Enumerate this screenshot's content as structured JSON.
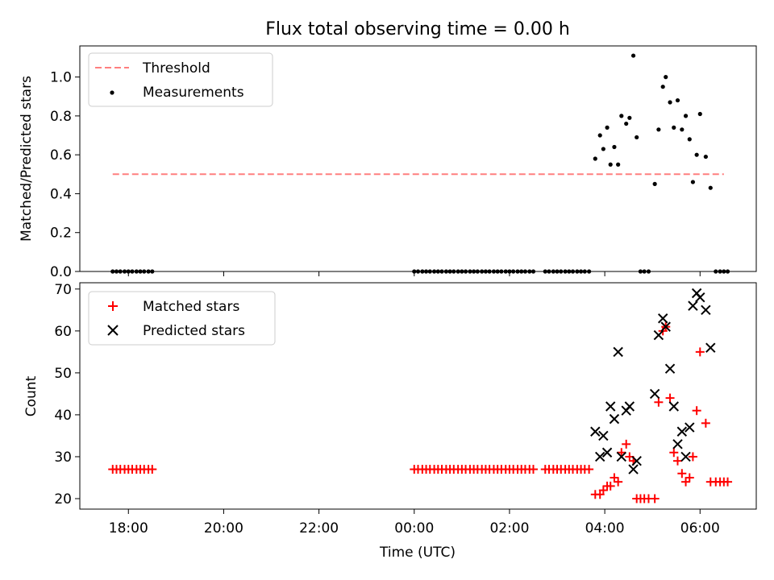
{
  "chart_data": {
    "title": "Flux total observing time = 0.00 h",
    "xlabel": "Time (UTC)",
    "x_tick_labels": [
      "18:00",
      "20:00",
      "22:00",
      "00:00",
      "02:00",
      "04:00",
      "06:00"
    ],
    "x_ticks_hours": [
      18,
      20,
      22,
      24,
      26,
      28,
      30
    ],
    "xlim_hours": [
      16.98,
      31.18
    ],
    "panels": [
      {
        "type": "scatter",
        "ylabel": "Matched/Predicted stars",
        "ylim": [
          0,
          1.16
        ],
        "y_ticks": [
          0.0,
          0.2,
          0.4,
          0.6,
          0.8,
          1.0
        ],
        "y_tick_labels": [
          "0.0",
          "0.2",
          "0.4",
          "0.6",
          "0.8",
          "1.0"
        ],
        "legend_position": "top-left",
        "threshold": {
          "name": "Threshold",
          "value": 0.5,
          "x_range": [
            17.67,
            30.5
          ],
          "color": "#ff7f7f"
        },
        "series": [
          {
            "name": "Measurements",
            "color": "#000000",
            "x": [
              17.67,
              17.75,
              17.83,
              17.92,
              18.0,
              18.08,
              18.17,
              18.25,
              18.33,
              18.42,
              18.5,
              24.0,
              24.08,
              24.17,
              24.25,
              24.33,
              24.42,
              24.5,
              24.58,
              24.67,
              24.75,
              24.83,
              24.92,
              25.0,
              25.08,
              25.17,
              25.25,
              25.33,
              25.42,
              25.5,
              25.58,
              25.67,
              25.75,
              25.83,
              25.92,
              26.0,
              26.08,
              26.17,
              26.25,
              26.33,
              26.42,
              26.5,
              26.75,
              26.83,
              26.92,
              27.0,
              27.08,
              27.17,
              27.25,
              27.33,
              27.42,
              27.5,
              27.58,
              27.67,
              27.8,
              27.9,
              27.97,
              28.05,
              28.12,
              28.2,
              28.28,
              28.35,
              28.45,
              28.52,
              28.6,
              28.67,
              28.75,
              28.83,
              28.92,
              29.05,
              29.13,
              29.22,
              29.28,
              29.37,
              29.45,
              29.53,
              29.62,
              29.7,
              29.78,
              29.85,
              29.93,
              30.0,
              30.12,
              30.22,
              30.33,
              30.42,
              30.5,
              30.58
            ],
            "y": [
              0,
              0,
              0,
              0,
              0,
              0,
              0,
              0,
              0,
              0,
              0,
              0,
              0,
              0,
              0,
              0,
              0,
              0,
              0,
              0,
              0,
              0,
              0,
              0,
              0,
              0,
              0,
              0,
              0,
              0,
              0,
              0,
              0,
              0,
              0,
              0,
              0,
              0,
              0,
              0,
              0,
              0,
              0,
              0,
              0,
              0,
              0,
              0,
              0,
              0,
              0,
              0,
              0,
              0,
              0.58,
              0.7,
              0.63,
              0.74,
              0.55,
              0.64,
              0.55,
              0.8,
              0.76,
              0.79,
              1.11,
              0.69,
              0,
              0,
              0,
              0.45,
              0.73,
              0.95,
              1.0,
              0.87,
              0.74,
              0.88,
              0.73,
              0.8,
              0.68,
              0.46,
              0.6,
              0.81,
              0.59,
              0.43,
              0,
              0,
              0,
              0
            ]
          }
        ]
      },
      {
        "type": "scatter",
        "ylabel": "Count",
        "ylim": [
          17.5,
          71.5
        ],
        "y_ticks": [
          20,
          30,
          40,
          50,
          60,
          70
        ],
        "y_tick_labels": [
          "20",
          "30",
          "40",
          "50",
          "60",
          "70"
        ],
        "legend_position": "top-left",
        "series": [
          {
            "name": "Matched stars",
            "marker": "plus",
            "color": "#ff0000",
            "x": [
              17.67,
              17.75,
              17.83,
              17.92,
              18.0,
              18.08,
              18.17,
              18.25,
              18.33,
              18.42,
              18.5,
              24.0,
              24.08,
              24.17,
              24.25,
              24.33,
              24.42,
              24.5,
              24.58,
              24.67,
              24.75,
              24.83,
              24.92,
              25.0,
              25.08,
              25.17,
              25.25,
              25.33,
              25.42,
              25.5,
              25.58,
              25.67,
              25.75,
              25.83,
              25.92,
              26.0,
              26.08,
              26.17,
              26.25,
              26.33,
              26.42,
              26.5,
              26.75,
              26.83,
              26.92,
              27.0,
              27.08,
              27.17,
              27.25,
              27.33,
              27.42,
              27.5,
              27.58,
              27.67,
              27.8,
              27.9,
              27.97,
              28.05,
              28.12,
              28.2,
              28.28,
              28.35,
              28.45,
              28.52,
              28.6,
              28.67,
              28.75,
              28.83,
              28.92,
              29.05,
              29.13,
              29.22,
              29.28,
              29.37,
              29.45,
              29.53,
              29.62,
              29.7,
              29.78,
              29.85,
              29.93,
              30.0,
              30.12,
              30.22,
              30.33,
              30.42,
              30.5,
              30.58
            ],
            "y": [
              27,
              27,
              27,
              27,
              27,
              27,
              27,
              27,
              27,
              27,
              27,
              27,
              27,
              27,
              27,
              27,
              27,
              27,
              27,
              27,
              27,
              27,
              27,
              27,
              27,
              27,
              27,
              27,
              27,
              27,
              27,
              27,
              27,
              27,
              27,
              27,
              27,
              27,
              27,
              27,
              27,
              27,
              27,
              27,
              27,
              27,
              27,
              27,
              27,
              27,
              27,
              27,
              27,
              27,
              21,
              21,
              22,
              23,
              23,
              25,
              24,
              31,
              33,
              30,
              29,
              20,
              20,
              20,
              20,
              20,
              43,
              60,
              61,
              44,
              31,
              29,
              26,
              24,
              25,
              30,
              41,
              55,
              38,
              24,
              24,
              24,
              24,
              24
            ]
          },
          {
            "name": "Predicted stars",
            "marker": "x",
            "color": "#000000",
            "x": [
              27.8,
              27.9,
              27.97,
              28.05,
              28.12,
              28.2,
              28.28,
              28.35,
              28.45,
              28.52,
              28.6,
              28.67,
              29.05,
              29.13,
              29.22,
              29.28,
              29.37,
              29.45,
              29.53,
              29.62,
              29.7,
              29.78,
              29.85,
              29.93,
              30.0,
              30.12,
              30.22
            ],
            "y": [
              36,
              30,
              35,
              31,
              42,
              39,
              55,
              30,
              41,
              42,
              27,
              29,
              45,
              59,
              63,
              61,
              51,
              42,
              33,
              36,
              30,
              37,
              66,
              69,
              68,
              65,
              56
            ]
          }
        ]
      }
    ]
  }
}
